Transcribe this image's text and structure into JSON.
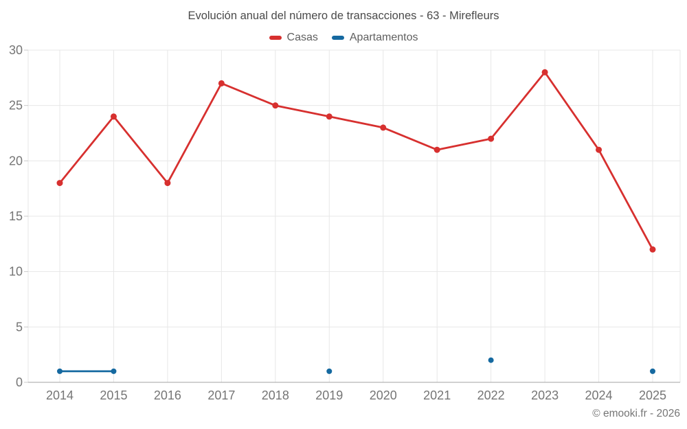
{
  "title": "Evolución anual del número de transacciones - 63 - Mirefleurs",
  "footer": "© emooki.fr - 2026",
  "chart_data": {
    "type": "line",
    "title": "Evolución anual del número de transacciones - 63 - Mirefleurs",
    "categories": [
      "2014",
      "2015",
      "2016",
      "2017",
      "2018",
      "2019",
      "2020",
      "2021",
      "2022",
      "2023",
      "2024",
      "2025"
    ],
    "series": [
      {
        "name": "Casas",
        "color": "#d7302f",
        "marker_radius": 4.5,
        "values": [
          18,
          24,
          18,
          27,
          25,
          24,
          23,
          21,
          22,
          28,
          21,
          12
        ]
      },
      {
        "name": "Apartamentos",
        "color": "#1569a0",
        "marker_radius": 4,
        "values": [
          1,
          1,
          null,
          null,
          null,
          1,
          null,
          null,
          2,
          null,
          null,
          1
        ]
      }
    ],
    "xlabel": "",
    "ylabel": "",
    "ylim": [
      0,
      30
    ],
    "yticks": [
      0,
      5,
      10,
      15,
      20,
      25,
      30
    ],
    "grid": true,
    "legend_position": "top"
  },
  "colors": {
    "background": "#ffffff",
    "grid": "#e7e7e7",
    "axis_line": "#a3a3a3",
    "tick_mark": "#c9c9c9",
    "tick_text": "#757575",
    "title_text": "#4a4a4a",
    "legend_text": "#5f5f5f"
  }
}
